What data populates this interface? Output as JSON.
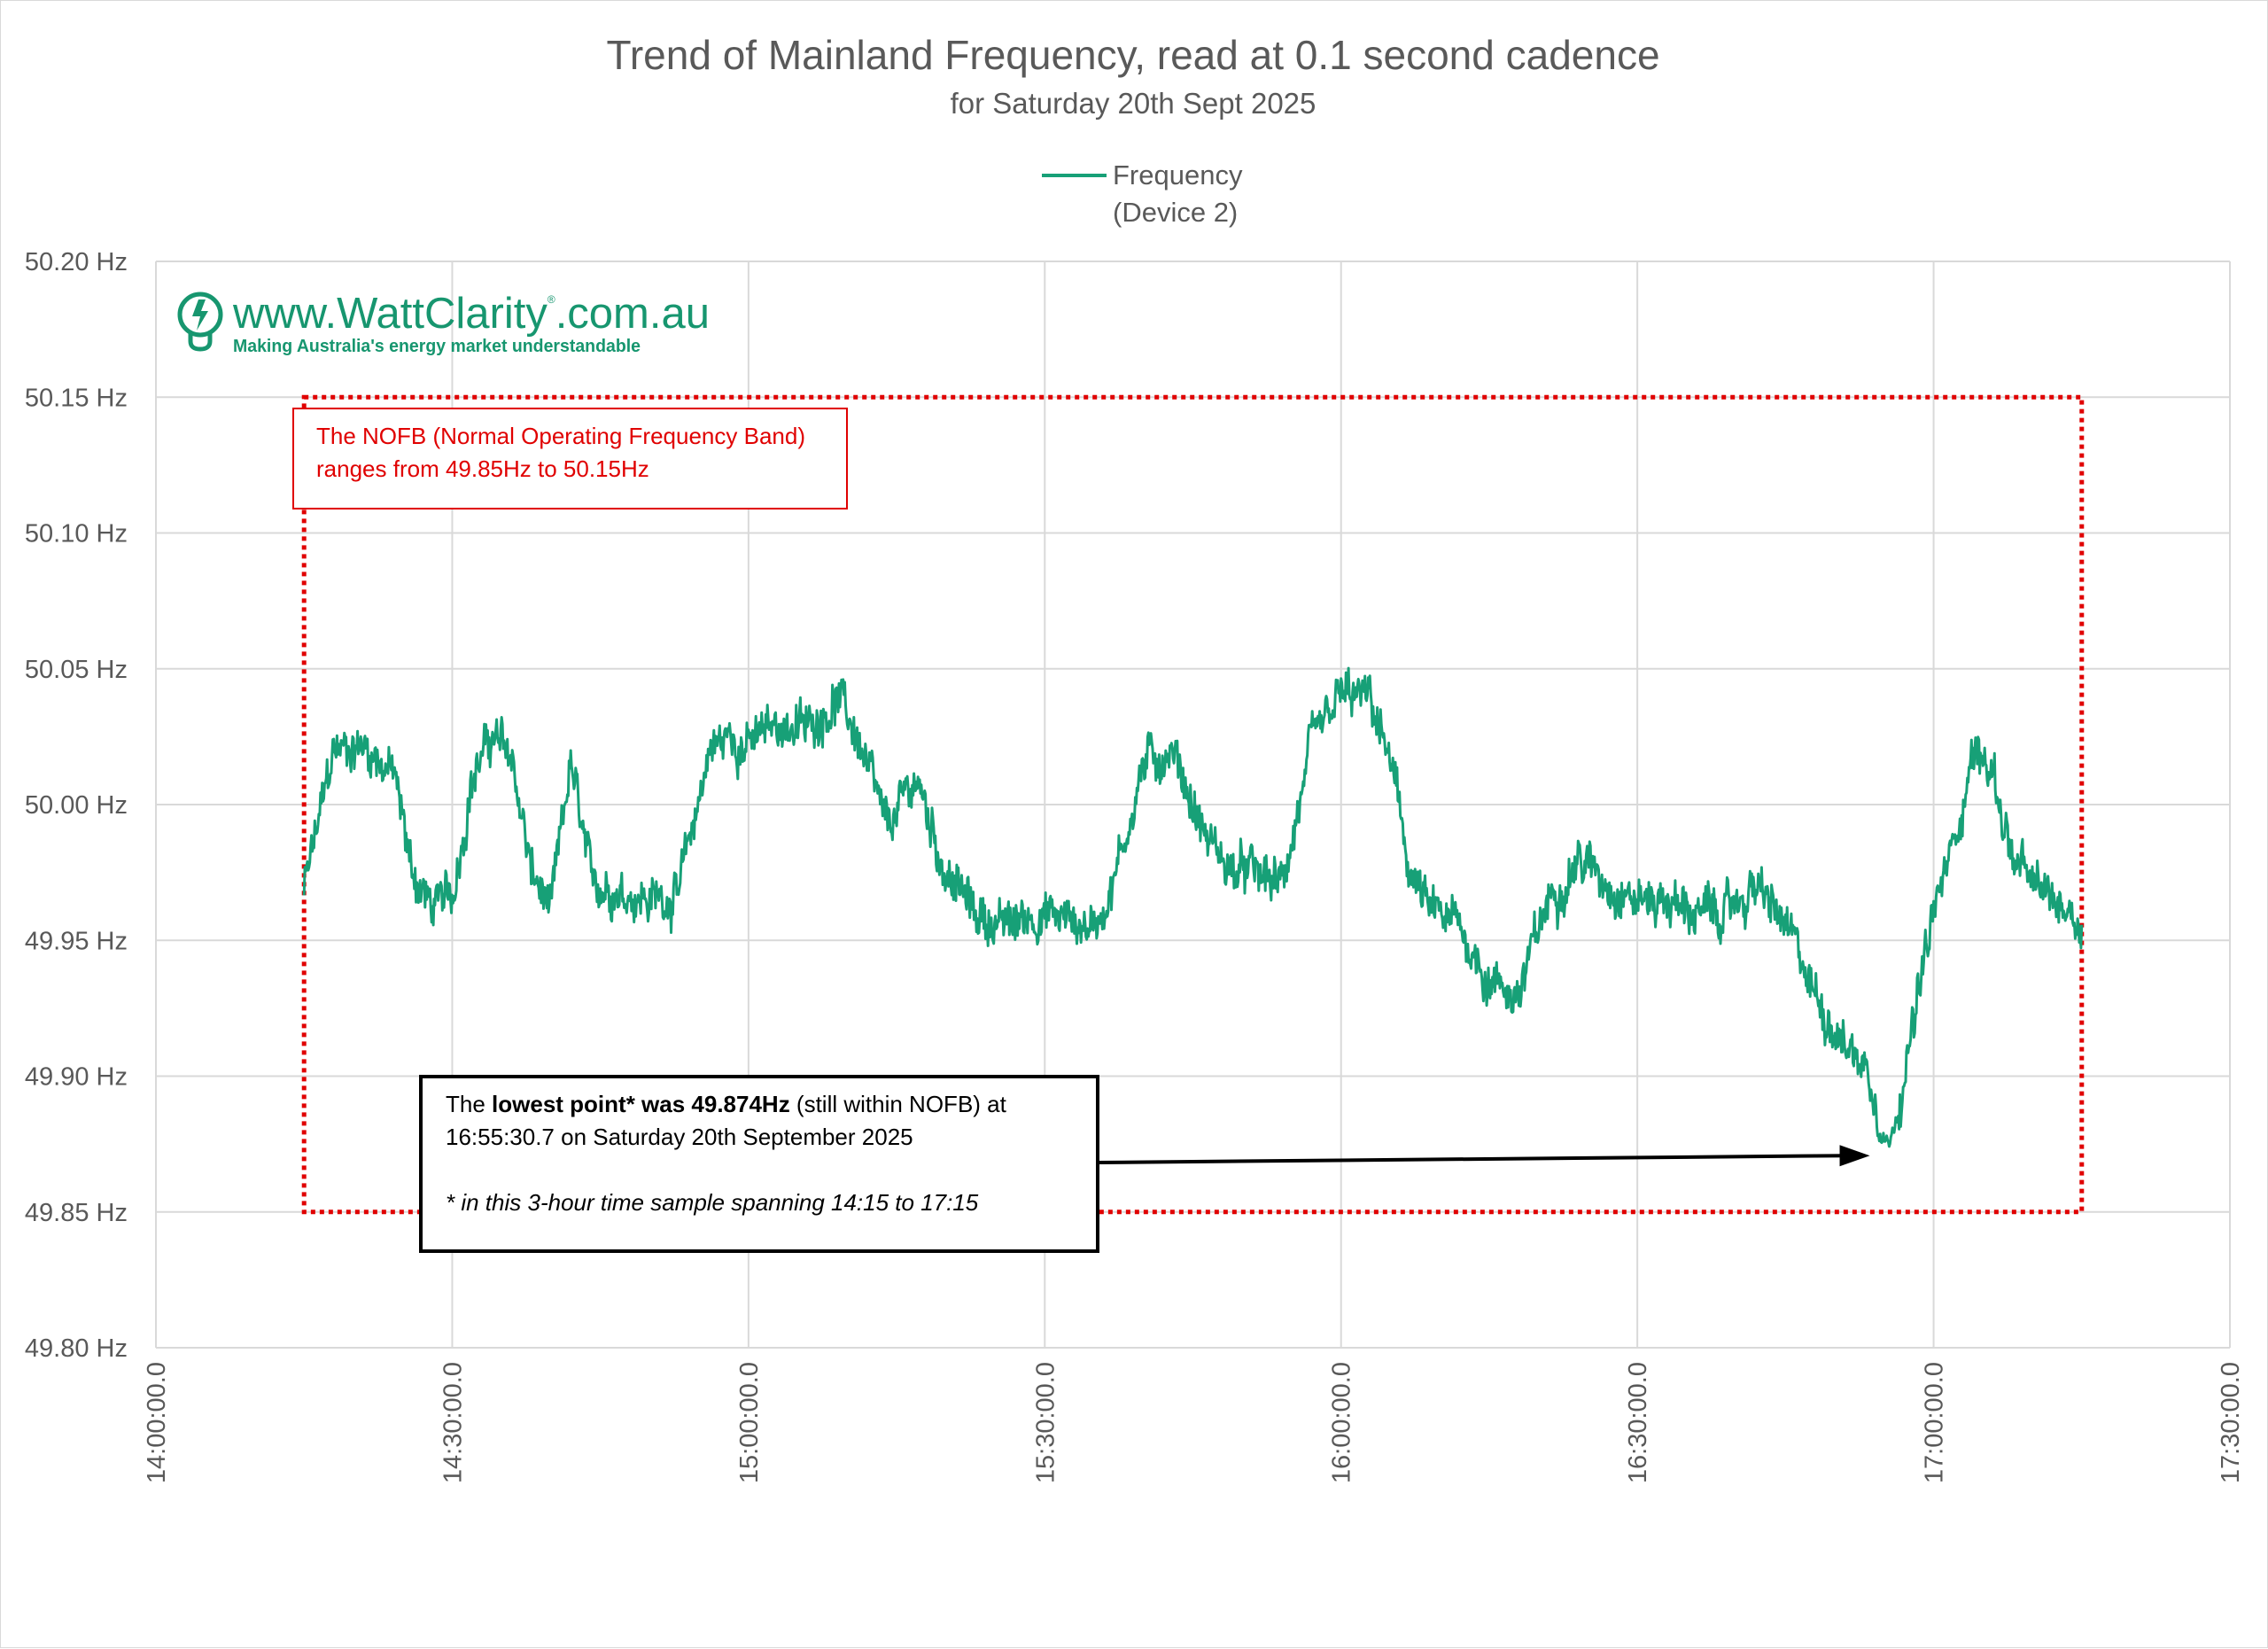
{
  "chart_data": {
    "type": "line",
    "title": "Trend of Mainland Frequency, read at 0.1 second cadence",
    "subtitle": "for Saturday 20th Sept 2025",
    "series": [
      {
        "name": "Frequency (Device 2)",
        "legend_lines": [
          "Frequency",
          "(Device 2)"
        ],
        "color": "#17a077",
        "x": [
          "14:15:00",
          "14:18:00",
          "14:21:00",
          "14:24:00",
          "14:26:00",
          "14:28:00",
          "14:30:00",
          "14:32:00",
          "14:34:00",
          "14:36:00",
          "14:38:00",
          "14:40:00",
          "14:42:00",
          "14:44:00",
          "14:46:00",
          "14:48:00",
          "14:50:00",
          "14:53:00",
          "14:56:00",
          "14:58:00",
          "15:00:00",
          "15:03:00",
          "15:06:00",
          "15:09:00",
          "15:11:00",
          "15:14:00",
          "15:17:00",
          "15:20:00",
          "15:23:00",
          "15:26:00",
          "15:29:00",
          "15:32:00",
          "15:35:00",
          "15:37:00",
          "15:40:00",
          "15:43:00",
          "15:46:00",
          "15:49:00",
          "15:51:00",
          "15:54:00",
          "15:57:00",
          "16:00:00",
          "16:03:00",
          "16:05:00",
          "16:07:00",
          "16:09:00",
          "16:12:00",
          "16:15:00",
          "16:18:00",
          "16:21:00",
          "16:24:00",
          "16:27:00",
          "16:30:00",
          "16:33:00",
          "16:36:00",
          "16:39:00",
          "16:42:00",
          "16:45:00",
          "16:48:00",
          "16:51:00",
          "16:53:00",
          "16:55:30.7",
          "16:58:00",
          "17:00:00",
          "17:02:00",
          "17:04:00",
          "17:06:00",
          "17:08:00",
          "17:10:00",
          "17:12:00",
          "17:14:00",
          "17:15:00"
        ],
        "y": [
          49.968,
          50.02,
          50.022,
          50.012,
          49.975,
          49.962,
          49.966,
          50.01,
          50.025,
          50.018,
          49.975,
          49.96,
          50.015,
          49.972,
          49.97,
          49.968,
          49.965,
          49.968,
          50.02,
          50.025,
          50.022,
          50.03,
          50.028,
          50.04,
          50.025,
          49.99,
          50.01,
          49.975,
          49.96,
          49.955,
          49.96,
          49.958,
          49.955,
          49.972,
          50.015,
          50.02,
          49.99,
          49.975,
          49.975,
          49.97,
          50.02,
          50.04,
          50.038,
          50.015,
          49.975,
          49.96,
          49.955,
          49.935,
          49.93,
          49.965,
          49.98,
          49.972,
          49.965,
          49.965,
          49.96,
          49.96,
          49.97,
          49.955,
          49.93,
          49.912,
          49.905,
          49.874,
          49.92,
          49.96,
          49.985,
          50.02,
          50.012,
          49.98,
          49.97,
          49.965,
          49.962,
          49.955
        ]
      }
    ],
    "xlim": [
      "14:00:00.0",
      "17:30:00.0"
    ],
    "xticks": [
      "14:00:00.0",
      "14:30:00.0",
      "15:00:00.0",
      "15:30:00.0",
      "16:00:00.0",
      "16:30:00.0",
      "17:00:00.0",
      "17:30:00.0"
    ],
    "ylim": [
      49.8,
      50.2
    ],
    "yticks": [
      "50.20 Hz",
      "50.15 Hz",
      "50.10 Hz",
      "50.05 Hz",
      "50.00 Hz",
      "49.95 Hz",
      "49.90 Hz",
      "49.85 Hz",
      "49.80 Hz"
    ],
    "grid": true,
    "legend_position": "top-center",
    "nofb_band": {
      "low": 49.85,
      "high": 50.15,
      "x_start": "14:15:00",
      "x_end": "17:15:00",
      "color": "#e00000",
      "label_lines": [
        "The NOFB  (Normal Operating Frequency Band)",
        "ranges from 49.85Hz to 50.15Hz"
      ]
    },
    "annotation": {
      "points_to": {
        "x": "16:55:30.7",
        "y": 49.874
      },
      "line1_prefix": "The ",
      "line1_bold": "lowest point* was 49.874Hz",
      "line1_suffix": " (still within NOFB) at",
      "line2": "16:55:30.7 on Saturday 20th September 2025",
      "line3": "* in this 3-hour time sample spanning 14:15 to 17:15"
    }
  },
  "logo": {
    "url_prefix": "www.",
    "url_brand": "WattClarity",
    "url_registered": "®",
    "url_suffix": ".com.au",
    "tagline": "Making Australia's energy market understandable",
    "icon": "lightbulb-bolt-icon",
    "color": "#17966f"
  }
}
